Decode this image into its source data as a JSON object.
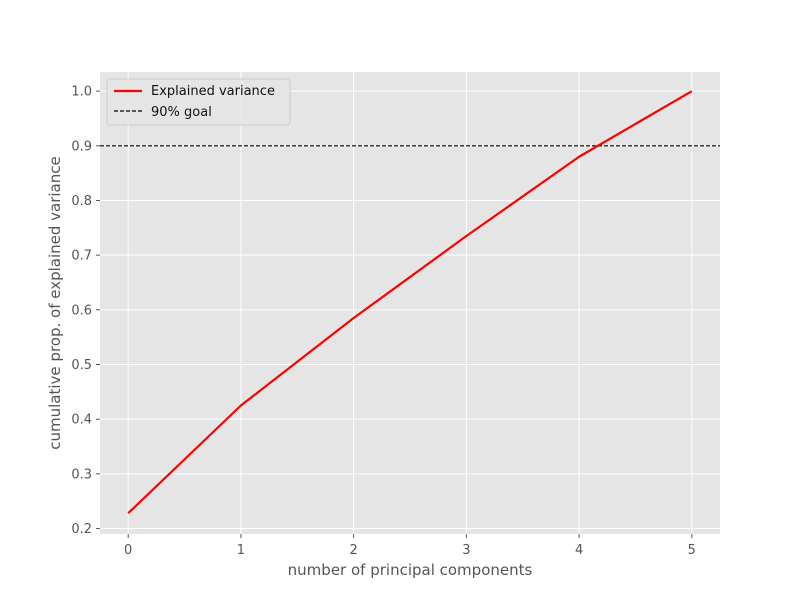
{
  "chart_data": {
    "type": "line",
    "title": "",
    "xlabel": "number of principal components",
    "ylabel": "cumulative prop. of explained variance",
    "xlim": [
      -0.25,
      5.25
    ],
    "ylim": [
      0.19,
      1.035
    ],
    "xticks": [
      0,
      1,
      2,
      3,
      4,
      5
    ],
    "yticks": [
      0.2,
      0.3,
      0.4,
      0.5,
      0.6,
      0.7,
      0.8,
      0.9,
      1.0
    ],
    "xtick_labels": [
      "0",
      "1",
      "2",
      "3",
      "4",
      "5"
    ],
    "ytick_labels": [
      "0.2",
      "0.3",
      "0.4",
      "0.5",
      "0.6",
      "0.7",
      "0.8",
      "0.9",
      "1.0"
    ],
    "grid": true,
    "legend_position": "top-left",
    "series": [
      {
        "name": "Explained variance",
        "x": [
          0,
          1,
          2,
          3,
          4,
          5
        ],
        "values": [
          0.228,
          0.425,
          0.585,
          0.735,
          0.88,
          1.0
        ],
        "color": "#ff0000",
        "style": "solid"
      },
      {
        "name": "90% goal",
        "y": 0.9,
        "color": "#000000",
        "style": "dashed",
        "kind": "hline"
      }
    ],
    "colors": {
      "plot_background": "#e5e5e5",
      "grid": "#ffffff",
      "tick_text": "#555555"
    }
  }
}
